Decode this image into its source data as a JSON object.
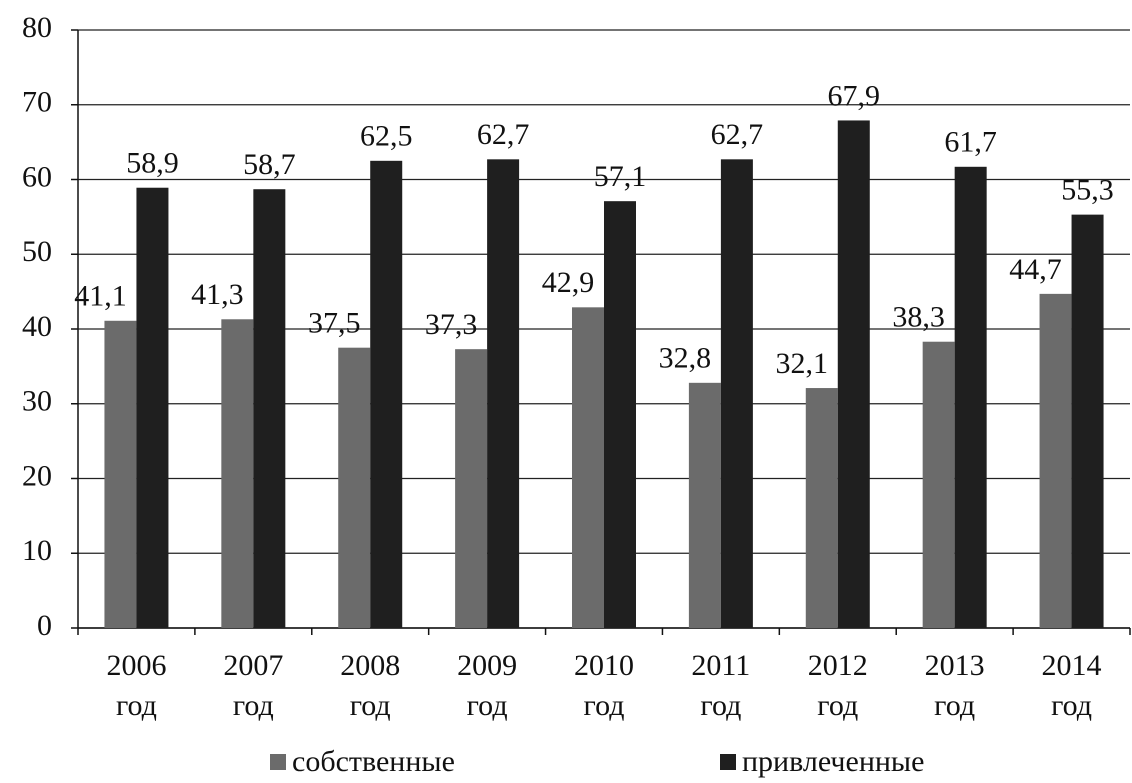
{
  "chart_data": {
    "type": "bar",
    "categories": [
      "2006 год",
      "2007 год",
      "2008 год",
      "2009 год",
      "2010 год",
      "2011 год",
      "2012 год",
      "2013 год",
      "2014 год"
    ],
    "series": [
      {
        "name": "собственные",
        "color": "#6b6b6b",
        "values": [
          41.1,
          41.3,
          37.5,
          37.3,
          42.9,
          32.8,
          32.1,
          38.3,
          44.7
        ],
        "value_labels": [
          "41,1",
          "41,3",
          "37,5",
          "37,3",
          "42,9",
          "32,8",
          "32,1",
          "38,3",
          "44,7"
        ]
      },
      {
        "name": "привлеченные",
        "color": "#1f1f1f",
        "values": [
          58.9,
          58.7,
          62.5,
          62.7,
          57.1,
          62.7,
          67.9,
          61.7,
          55.3
        ],
        "value_labels": [
          "58,9",
          "58,7",
          "62,5",
          "62,7",
          "57,1",
          "62,7",
          "67,9",
          "61,7",
          "55,3"
        ]
      }
    ],
    "ylim": [
      0,
      80
    ],
    "yticks": [
      0,
      10,
      20,
      30,
      40,
      50,
      60,
      70,
      80
    ],
    "grid": true,
    "legend": "bottom"
  }
}
